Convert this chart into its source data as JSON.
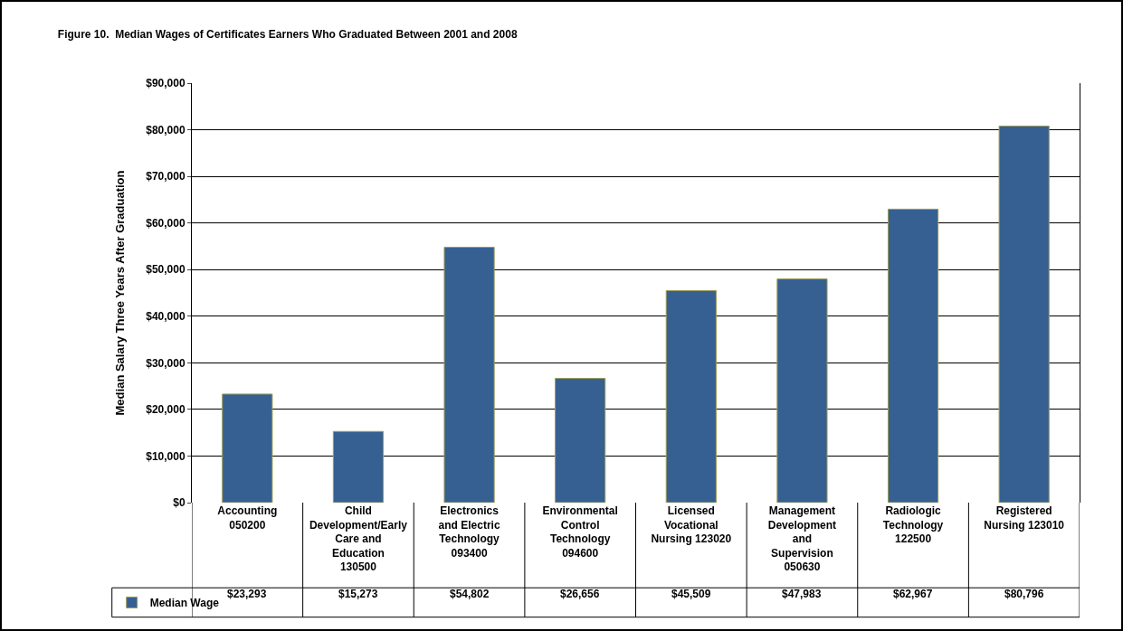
{
  "chart_data": {
    "type": "bar",
    "title": "Figure 10.  Median Wages of Certificates Earners Who Graduated Between 2001 and 2008",
    "ylabel": "Median Salary Three Years After Graduation",
    "categories": [
      "Accounting 050200",
      "Child Development/Early Care and Education 130500",
      "Electronics and Electric Technology 093400",
      "Environmental Control Technology 094600",
      "Licensed Vocational Nursing 123020",
      "Management Development and Supervision 050630",
      "Radiologic Technology 122500",
      "Registered Nursing 123010"
    ],
    "series": [
      {
        "name": "Median Wage",
        "color": "#366092",
        "values": [
          23293,
          15273,
          54802,
          26656,
          45509,
          47983,
          62967,
          80796
        ],
        "value_labels": [
          "$23,293",
          "$15,273",
          "$54,802",
          "$26,656",
          "$45,509",
          "$47,983",
          "$62,967",
          "$80,796"
        ]
      }
    ],
    "ylim": [
      0,
      90000
    ],
    "yticks": [
      {
        "value": 0,
        "label": "$0"
      },
      {
        "value": 10000,
        "label": "$10,000"
      },
      {
        "value": 20000,
        "label": "$20,000"
      },
      {
        "value": 30000,
        "label": "$30,000"
      },
      {
        "value": 40000,
        "label": "$40,000"
      },
      {
        "value": 50000,
        "label": "$50,000"
      },
      {
        "value": 60000,
        "label": "$60,000"
      },
      {
        "value": 70000,
        "label": "$70,000"
      },
      {
        "value": 80000,
        "label": "$80,000"
      },
      {
        "value": 90000,
        "label": "$90,000"
      }
    ],
    "grid": "y",
    "legend": "bottom left"
  }
}
